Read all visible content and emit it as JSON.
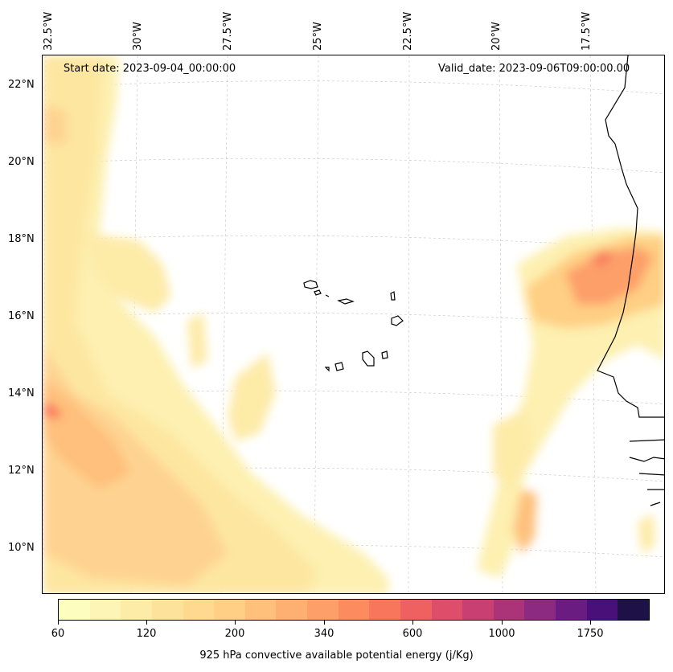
{
  "labels": {
    "start_date": "Start date: 2023-09-04_00:00:00",
    "valid_date": "Valid_date: 2023-09-06T09:00:00.00"
  },
  "longitude_ticks": [
    "32.5°W",
    "30°W",
    "27.5°W",
    "25°W",
    "22.5°W",
    "20°W",
    "17.5°W"
  ],
  "latitude_ticks": [
    "22°N",
    "20°N",
    "18°N",
    "16°N",
    "14°N",
    "12°N",
    "10°N"
  ],
  "colorbar": {
    "title": "925 hPa convective available potential energy (j/Kg)",
    "tick_labels": [
      "60",
      "120",
      "200",
      "340",
      "600",
      "1000",
      "1750"
    ],
    "colors": [
      "#fcfdbf",
      "#fdf5b5",
      "#fdeba8",
      "#fde29c",
      "#fed98f",
      "#fecf84",
      "#fec07b",
      "#feb072",
      "#fd9f69",
      "#fc8c60",
      "#f8765c",
      "#ef6060",
      "#de4d69",
      "#c93f72",
      "#ab3378",
      "#8c2981",
      "#6a1c81",
      "#4a1079",
      "#1d1147"
    ]
  }
}
